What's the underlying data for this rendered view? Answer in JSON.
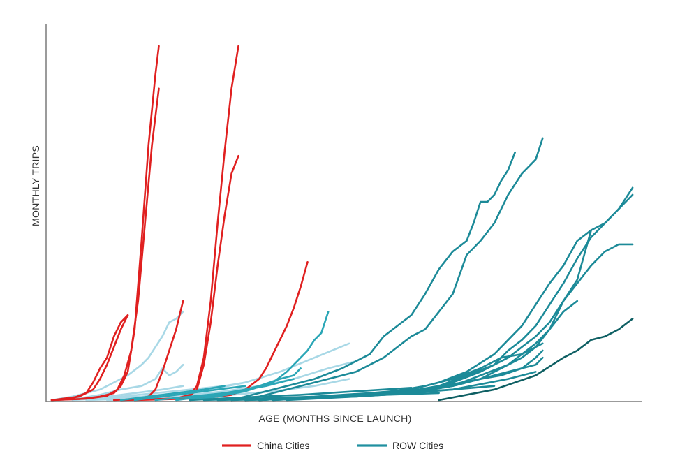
{
  "chart_data": {
    "type": "line",
    "xlabel": "AGE (MONTHS SINCE LAUNCH)",
    "ylabel": "MONTHLY TRIPS",
    "x_ticks_shown": false,
    "y_ticks_shown": false,
    "grid": false,
    "xlim": [
      0,
      85
    ],
    "ylim": [
      0,
      100
    ],
    "legend": {
      "position": "bottom",
      "entries": [
        {
          "label": "China Cities",
          "color": "#e02020"
        },
        {
          "label": "ROW Cities",
          "color": "#2090a0"
        }
      ]
    },
    "colors": {
      "china": "#e02020",
      "row_light": "#a8d8e6",
      "row_mid": "#2aa6b6",
      "row_dark": "#1c8a98",
      "row_darkest": "#0e5f63",
      "axis": "#7a7a7a"
    },
    "series": [
      {
        "group": "china",
        "color": "#e02020",
        "x": [
          0,
          4,
          7,
          9,
          10,
          11,
          12,
          13,
          14,
          15,
          15.5
        ],
        "y": [
          0,
          0.3,
          1,
          2,
          4,
          8,
          20,
          45,
          72,
          92,
          100
        ]
      },
      {
        "group": "china",
        "color": "#e02020",
        "x": [
          0,
          5,
          8,
          9.5,
          10.5,
          11.5,
          12.5,
          13.5,
          14.5,
          15.5
        ],
        "y": [
          0,
          0.4,
          1.2,
          3,
          7,
          14,
          28,
          50,
          72,
          88
        ]
      },
      {
        "group": "china",
        "color": "#e02020",
        "x": [
          0,
          4,
          6,
          7,
          8,
          9,
          10,
          11
        ],
        "y": [
          0,
          1,
          3,
          6,
          10,
          15,
          20,
          24
        ]
      },
      {
        "group": "china",
        "color": "#e02020",
        "x": [
          0,
          3,
          5,
          6,
          7,
          8,
          9,
          10,
          11
        ],
        "y": [
          0,
          0.5,
          2,
          5,
          9,
          12,
          18,
          22,
          24
        ]
      },
      {
        "group": "china",
        "color": "#e02020",
        "x": [
          9,
          12,
          14,
          15,
          16,
          17,
          18,
          19
        ],
        "y": [
          0,
          0.3,
          1,
          3,
          8,
          14,
          20,
          28
        ]
      },
      {
        "group": "china",
        "color": "#e02020",
        "x": [
          10,
          14,
          18,
          20,
          21,
          22,
          23,
          24,
          25,
          26,
          27
        ],
        "y": [
          0,
          0.2,
          0.5,
          1.5,
          4,
          12,
          28,
          50,
          70,
          88,
          100
        ]
      },
      {
        "group": "china",
        "color": "#e02020",
        "x": [
          10,
          14,
          18,
          20,
          21,
          22,
          23,
          24,
          25,
          26,
          27
        ],
        "y": [
          0,
          0.2,
          0.5,
          1.2,
          3,
          10,
          22,
          38,
          52,
          64,
          69
        ]
      },
      {
        "group": "china",
        "color": "#e02020",
        "x": [
          12,
          18,
          22,
          24,
          26,
          28,
          30,
          31,
          32,
          33,
          34,
          35,
          36,
          37
        ],
        "y": [
          0,
          0.3,
          0.6,
          1,
          1.5,
          3,
          6,
          9,
          13,
          17,
          21,
          26,
          32,
          39
        ]
      },
      {
        "group": "row_light",
        "color": "#a8d8e6",
        "x": [
          0,
          3,
          5,
          7,
          9,
          11,
          13,
          14,
          15,
          16,
          17,
          18,
          19
        ],
        "y": [
          0,
          1,
          2,
          3,
          5,
          7,
          10,
          12,
          15,
          18,
          22,
          23,
          25
        ]
      },
      {
        "group": "row_light",
        "color": "#a8d8e6",
        "x": [
          0,
          4,
          7,
          10,
          13,
          15,
          16,
          17,
          18,
          19
        ],
        "y": [
          0,
          0.5,
          1.5,
          3,
          4,
          6,
          9,
          7,
          8,
          10
        ]
      },
      {
        "group": "row_light",
        "color": "#a8d8e6",
        "x": [
          0,
          4,
          8,
          12,
          16,
          19
        ],
        "y": [
          0,
          0.4,
          1,
          2,
          3,
          4
        ]
      },
      {
        "group": "row_light",
        "color": "#a8d8e6",
        "x": [
          0,
          5,
          10,
          15,
          20,
          25,
          28
        ],
        "y": [
          0,
          0.3,
          1,
          2,
          3,
          4,
          5
        ]
      },
      {
        "group": "row_light",
        "color": "#a8d8e6",
        "x": [
          3,
          8,
          13,
          18,
          23,
          28,
          33,
          38,
          43
        ],
        "y": [
          0,
          0.5,
          1,
          2,
          3,
          5,
          8,
          12,
          16
        ]
      },
      {
        "group": "row_light",
        "color": "#a8d8e6",
        "x": [
          5,
          10,
          15,
          20,
          25,
          30,
          35,
          40,
          44
        ],
        "y": [
          0,
          0.3,
          0.8,
          1.5,
          2.5,
          4,
          6,
          9,
          11
        ]
      },
      {
        "group": "row_light",
        "color": "#a8d8e6",
        "x": [
          8,
          14,
          20,
          26,
          32,
          38,
          43
        ],
        "y": [
          0,
          0.3,
          0.8,
          1.5,
          2.5,
          4,
          6
        ]
      },
      {
        "group": "row_mid",
        "color": "#2aa6b6",
        "x": [
          20,
          24,
          28,
          32,
          34,
          36,
          37,
          38,
          39,
          40
        ],
        "y": [
          0,
          1,
          2.5,
          5,
          8,
          12,
          14,
          17,
          19,
          25
        ]
      },
      {
        "group": "row_mid",
        "color": "#2aa6b6",
        "x": [
          18,
          22,
          26,
          30,
          33,
          35,
          36
        ],
        "y": [
          0,
          1,
          2,
          4,
          6,
          7,
          9
        ]
      },
      {
        "group": "row_mid",
        "color": "#2aa6b6",
        "x": [
          15,
          20,
          25,
          28,
          31,
          33,
          35
        ],
        "y": [
          0,
          1,
          2,
          3,
          4,
          5,
          6
        ]
      },
      {
        "group": "row_mid",
        "color": "#2aa6b6",
        "x": [
          12,
          16,
          20,
          24,
          28
        ],
        "y": [
          0,
          1,
          2,
          3,
          4
        ]
      },
      {
        "group": "row_mid",
        "color": "#2aa6b6",
        "x": [
          10,
          14,
          18,
          22,
          25
        ],
        "y": [
          0,
          1,
          2,
          3,
          4
        ]
      },
      {
        "group": "row_dark",
        "color": "#1c8a98",
        "x": [
          26,
          30,
          34,
          38,
          42,
          46,
          48,
          50,
          52,
          54,
          56,
          58,
          60,
          61,
          62,
          63,
          64,
          65,
          66,
          67
        ],
        "y": [
          0,
          2,
          4,
          6,
          9,
          13,
          18,
          21,
          24,
          30,
          37,
          42,
          45,
          50,
          56,
          56,
          58,
          62,
          65,
          70
        ]
      },
      {
        "group": "row_dark",
        "color": "#1c8a98",
        "x": [
          28,
          32,
          36,
          40,
          44,
          48,
          50,
          52,
          54,
          56,
          58,
          60,
          62,
          64,
          66,
          68,
          70,
          71
        ],
        "y": [
          0,
          2,
          4,
          6,
          8,
          12,
          15,
          18,
          20,
          25,
          30,
          41,
          45,
          50,
          58,
          64,
          68,
          74
        ]
      },
      {
        "group": "row_dark",
        "color": "#1c8a98",
        "x": [
          30,
          40,
          50,
          56,
          60,
          64,
          66,
          68,
          70,
          72,
          74,
          76,
          78,
          80,
          82,
          84
        ],
        "y": [
          0,
          1,
          2,
          5,
          8,
          13,
          17,
          21,
          27,
          33,
          38,
          45,
          48,
          50,
          54,
          58
        ]
      },
      {
        "group": "row_dark",
        "color": "#1c8a98",
        "x": [
          30,
          40,
          50,
          56,
          60,
          64,
          66,
          68,
          70,
          72,
          74,
          76,
          78,
          80,
          82,
          84
        ],
        "y": [
          0,
          1,
          2,
          4,
          7,
          10,
          14,
          17,
          21,
          27,
          33,
          40,
          46,
          50,
          54,
          60
        ]
      },
      {
        "group": "row_dark",
        "color": "#1c8a98",
        "x": [
          32,
          42,
          52,
          58,
          62,
          66,
          68,
          70,
          72,
          74,
          76,
          78
        ],
        "y": [
          0,
          1,
          2,
          5,
          8,
          12,
          15,
          18,
          22,
          28,
          34,
          48
        ]
      },
      {
        "group": "row_dark",
        "color": "#1c8a98",
        "x": [
          32,
          42,
          52,
          58,
          62,
          66,
          68,
          70,
          72,
          74,
          76,
          78,
          80,
          82,
          84
        ],
        "y": [
          0,
          1,
          2,
          4,
          6,
          10,
          13,
          16,
          20,
          28,
          33,
          38,
          42,
          44,
          44
        ]
      },
      {
        "group": "row_dark",
        "color": "#1c8a98",
        "x": [
          34,
          44,
          52,
          58,
          62,
          66,
          68,
          70,
          72,
          74,
          76
        ],
        "y": [
          0,
          1,
          2,
          4,
          7,
          10,
          12,
          15,
          20,
          25,
          28
        ]
      },
      {
        "group": "row_dark",
        "color": "#1c8a98",
        "x": [
          30,
          40,
          48,
          54,
          58,
          62,
          65,
          68,
          70,
          71
        ],
        "y": [
          0,
          1,
          2,
          4,
          6,
          9,
          12,
          13,
          15,
          16
        ]
      },
      {
        "group": "row_dark",
        "color": "#1c8a98",
        "x": [
          30,
          40,
          48,
          54,
          58,
          62,
          65,
          68,
          70,
          71
        ],
        "y": [
          0,
          1,
          2,
          3,
          4,
          6,
          7,
          9,
          12,
          14
        ]
      },
      {
        "group": "row_dark",
        "color": "#1c8a98",
        "x": [
          28,
          36,
          44,
          50,
          54,
          58,
          62,
          66,
          70,
          71
        ],
        "y": [
          0,
          0.6,
          1.2,
          2,
          3,
          4.5,
          6,
          8,
          10,
          12
        ]
      },
      {
        "group": "row_dark",
        "color": "#1c8a98",
        "x": [
          28,
          36,
          44,
          52,
          58,
          62,
          66,
          70
        ],
        "y": [
          0,
          0.5,
          1,
          2,
          3,
          4.5,
          6,
          8
        ]
      },
      {
        "group": "row_dark",
        "color": "#1c8a98",
        "x": [
          26,
          34,
          42,
          50,
          58,
          64
        ],
        "y": [
          0,
          0.5,
          1,
          2,
          3,
          4
        ]
      },
      {
        "group": "row_dark",
        "color": "#1c8a98",
        "x": [
          24,
          32,
          40,
          48,
          56
        ],
        "y": [
          0,
          0.4,
          1,
          1.5,
          2
        ]
      },
      {
        "group": "row_dark",
        "color": "#1c8a98",
        "x": [
          22,
          30,
          38,
          46,
          52
        ],
        "y": [
          0,
          0.5,
          1,
          2,
          3
        ]
      },
      {
        "group": "row_dark",
        "color": "#1c8a98",
        "x": [
          20,
          28,
          36,
          44,
          52
        ],
        "y": [
          0,
          0.8,
          1.5,
          2.5,
          3.5
        ]
      },
      {
        "group": "row_darkest",
        "color": "#0e5f63",
        "x": [
          56,
          64,
          70,
          74,
          76,
          78,
          80,
          82,
          84
        ],
        "y": [
          0,
          3,
          7,
          12,
          14,
          17,
          18,
          20,
          23
        ]
      }
    ]
  }
}
